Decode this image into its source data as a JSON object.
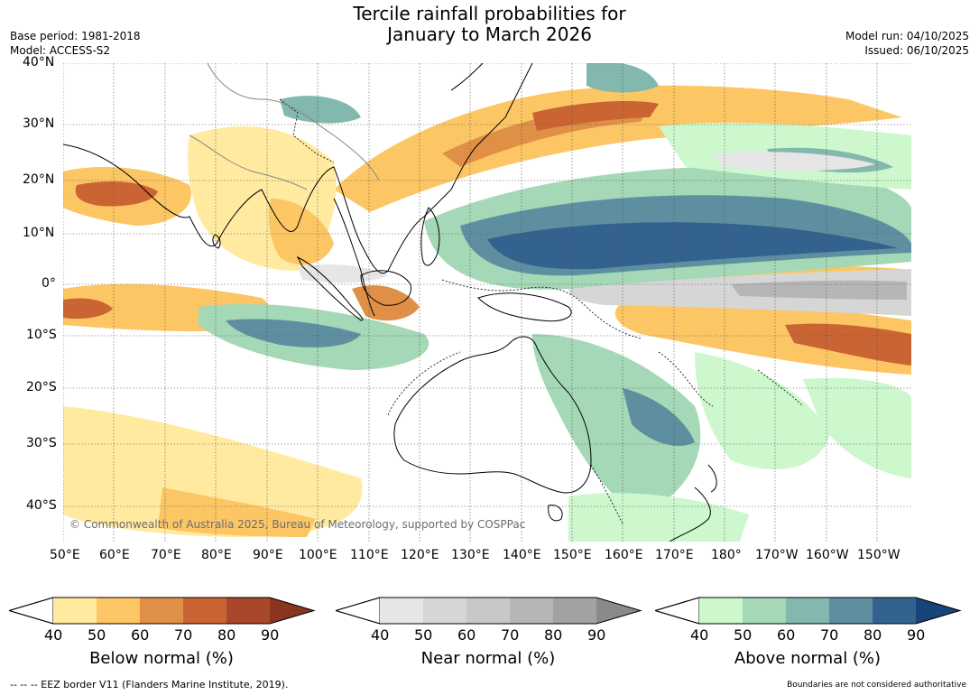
{
  "title_line1": "Tercile rainfall probabilities for",
  "title_line2": "January to March 2026",
  "base_period": "Base period: 1981-2018",
  "model": "Model: ACCESS-S2",
  "model_run": "Model run: 04/10/2025",
  "issued": "Issued: 06/10/2025",
  "copyright": "© Commonwealth of Australia 2025, Bureau of Meteorology, supported by COSPPac",
  "lat_labels": [
    "40°N",
    "30°N",
    "20°N",
    "10°N",
    "0°",
    "10°S",
    "20°S",
    "30°S",
    "40°S"
  ],
  "lon_labels": [
    "50°E",
    "60°E",
    "70°E",
    "80°E",
    "90°E",
    "100°E",
    "110°E",
    "120°E",
    "130°E",
    "140°E",
    "150°E",
    "160°E",
    "170°E",
    "180°",
    "170°W",
    "160°W",
    "150°W"
  ],
  "legends": {
    "below": {
      "title": "Below normal (%)",
      "ticks": [
        "40",
        "50",
        "60",
        "70",
        "80",
        "90"
      ],
      "colors": [
        "#ffeaa0",
        "#fcc664",
        "#df9046",
        "#ca6433",
        "#a9472a",
        "#8a3520"
      ]
    },
    "near": {
      "title": "Near normal (%)",
      "ticks": [
        "40",
        "50",
        "60",
        "70",
        "80",
        "90"
      ],
      "colors": [
        "#e6e6e6",
        "#d6d6d6",
        "#c8c8c8",
        "#b6b6b6",
        "#a2a2a2",
        "#8a8a8a"
      ]
    },
    "above": {
      "title": "Above normal (%)",
      "ticks": [
        "40",
        "50",
        "60",
        "70",
        "80",
        "90"
      ],
      "colors": [
        "#cdf7cd",
        "#a4d8b6",
        "#82b8ad",
        "#5e8fa1",
        "#33628f",
        "#17457b"
      ]
    }
  },
  "footer_left": "--  --  -- EEZ border V11 (Flanders Marine Institute, 2019).",
  "footer_right": "Boundaries are not considered authoritative"
}
